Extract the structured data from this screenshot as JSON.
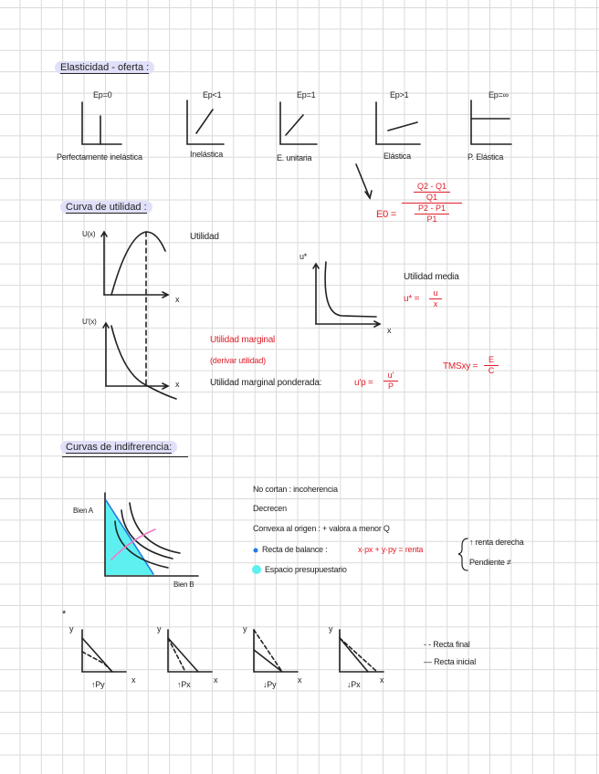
{
  "elasticity": {
    "title": "Elasticidad - oferta :",
    "graphs": [
      {
        "symbol": "Ep=0",
        "label": "Perfectamente inelástica"
      },
      {
        "symbol": "Ep<1",
        "label": "Inelástica"
      },
      {
        "symbol": "Ep=1",
        "label": "E. unitaria"
      },
      {
        "symbol": "Ep>1",
        "label": "Elástica"
      },
      {
        "symbol": "Ep=∞",
        "label": "P. Elástica"
      }
    ],
    "formula": {
      "lhs": "E0 =",
      "num_top": "Q2 - Q1",
      "num_bottom": "Q1",
      "den_top": "P2 - P1",
      "den_bottom": "P1"
    }
  },
  "utility": {
    "title": "Curva de utilidad :",
    "graph1_ylabel": "U(x)",
    "graph2_ylabel": "U'(x)",
    "xlabel": "x",
    "utility_label": "Utilidad",
    "avg_ylabel": "u*",
    "avg_label": "Utilidad media",
    "avg_formula": {
      "lhs": "u* =",
      "num": "u",
      "den": "x"
    },
    "marginal_label": "Utilidad marginal",
    "marginal_note": "(derivar utilidad)",
    "weighted_label": "Utilidad marginal ponderada:",
    "weighted_formula": {
      "lhs": "u'p =",
      "num": "u'",
      "den": "P"
    },
    "tms_formula": {
      "lhs": "TMSxy =",
      "num": "E",
      "den": "C"
    }
  },
  "indifference": {
    "title": "Curvas de indifrerencia:",
    "ylabel": "Bien A",
    "xlabel": "Bien B",
    "notes": [
      "No cortan : incoherencia",
      "Decrecen",
      "Convexa al origen : + valora a menor Q"
    ],
    "budget_line_label": "Recta de balance :",
    "budget_line_formula": "x·px + y·py = renta",
    "budget_space_label": "Espacio presupuestario",
    "brace_items": [
      "↑ renta derecha",
      "Pendiente ≠"
    ],
    "colors": {
      "budget_line": "#1e7be0",
      "budget_space": "#5ef0f0",
      "pink": "#f07ac8",
      "accent": "#e0202a",
      "highlight": "#e0e0fa"
    }
  },
  "shifts": {
    "star": "*",
    "graphs": [
      {
        "ylabel": "y",
        "xlabel": "x",
        "caption": "↑Py"
      },
      {
        "ylabel": "y",
        "xlabel": "x",
        "caption": "↑Px"
      },
      {
        "ylabel": "y",
        "xlabel": "x",
        "caption": "↓Py"
      },
      {
        "ylabel": "y",
        "xlabel": "x",
        "caption": "↓Px"
      }
    ],
    "legend": {
      "final": "- - Recta final",
      "initial": "— Recta inicial"
    }
  }
}
